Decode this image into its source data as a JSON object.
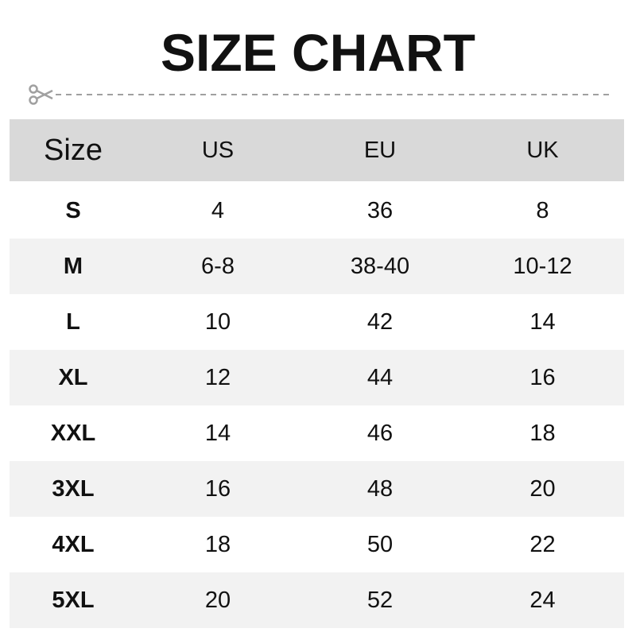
{
  "title": "SIZE CHART",
  "icons": {
    "cut": "scissors-icon"
  },
  "headers": [
    "Size",
    "US",
    "EU",
    "UK"
  ],
  "rows": [
    [
      "S",
      "4",
      "36",
      "8"
    ],
    [
      "M",
      "6-8",
      "38-40",
      "10-12"
    ],
    [
      "L",
      "10",
      "42",
      "14"
    ],
    [
      "XL",
      "12",
      "44",
      "16"
    ],
    [
      "XXL",
      "14",
      "46",
      "18"
    ],
    [
      "3XL",
      "16",
      "48",
      "20"
    ],
    [
      "4XL",
      "18",
      "50",
      "22"
    ],
    [
      "5XL",
      "20",
      "52",
      "24"
    ]
  ],
  "colors": {
    "header_bg": "#d9d9d9",
    "alt_row_bg": "#f2f2f2",
    "cut_line": "#a0a0a0"
  }
}
